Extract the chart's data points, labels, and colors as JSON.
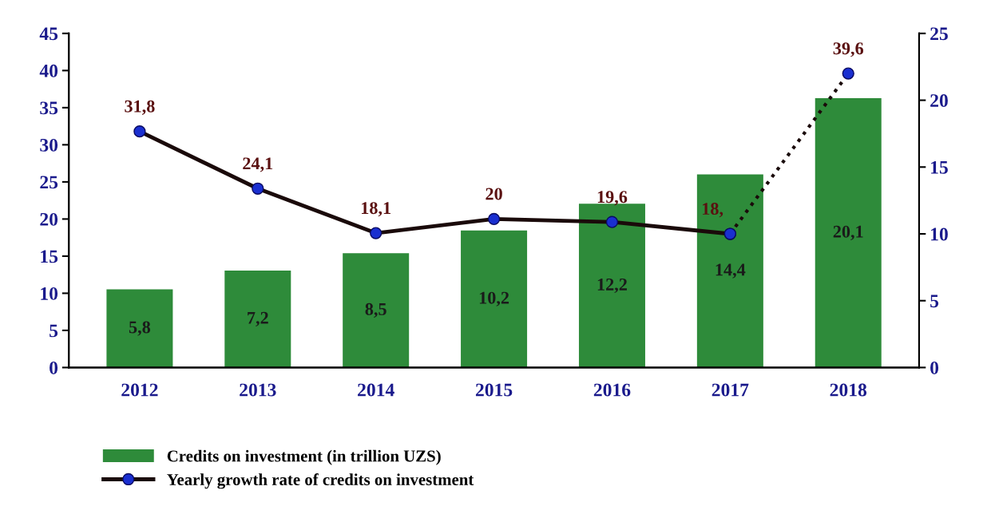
{
  "chart_data": {
    "type": "bar",
    "categories": [
      "2012",
      "2013",
      "2014",
      "2015",
      "2016",
      "2017",
      "2018"
    ],
    "series": [
      {
        "name": "Credits on investment (in trillion UZS)",
        "axis": "y2",
        "color": "#2e8b3a",
        "values": [
          5.8,
          7.2,
          8.5,
          10.2,
          12.2,
          14.4,
          20.1
        ],
        "value_labels": [
          "5,8",
          "7,2",
          "8,5",
          "10,2",
          "12,2",
          "14,4",
          "20,1"
        ]
      },
      {
        "name": "Yearly growth rate of credits on investment",
        "type": "line",
        "axis": "y",
        "color": "#1a0a0a",
        "marker": "circle",
        "line_style": "solid",
        "values": [
          31.8,
          24.1,
          18.1,
          20,
          19.6,
          18,
          null
        ],
        "value_labels": [
          "31,8",
          "24,1",
          "18,1",
          "20",
          "19,6",
          "18,",
          null
        ]
      },
      {
        "type": "line",
        "axis": "y",
        "color": "#1a0a0a",
        "marker": "circle",
        "line_style": "dotted",
        "values": [
          null,
          null,
          null,
          null,
          null,
          18,
          39.6
        ],
        "value_labels": [
          null,
          null,
          null,
          null,
          null,
          null,
          "39,6"
        ]
      }
    ],
    "ylim": [
      0,
      45
    ],
    "yticks": [
      0,
      5,
      10,
      15,
      20,
      25,
      30,
      35,
      40,
      45
    ],
    "y2lim": [
      0,
      25
    ],
    "y2ticks": [
      0,
      5,
      10,
      15,
      20,
      25
    ],
    "grid": false,
    "legend": "bottom left"
  }
}
